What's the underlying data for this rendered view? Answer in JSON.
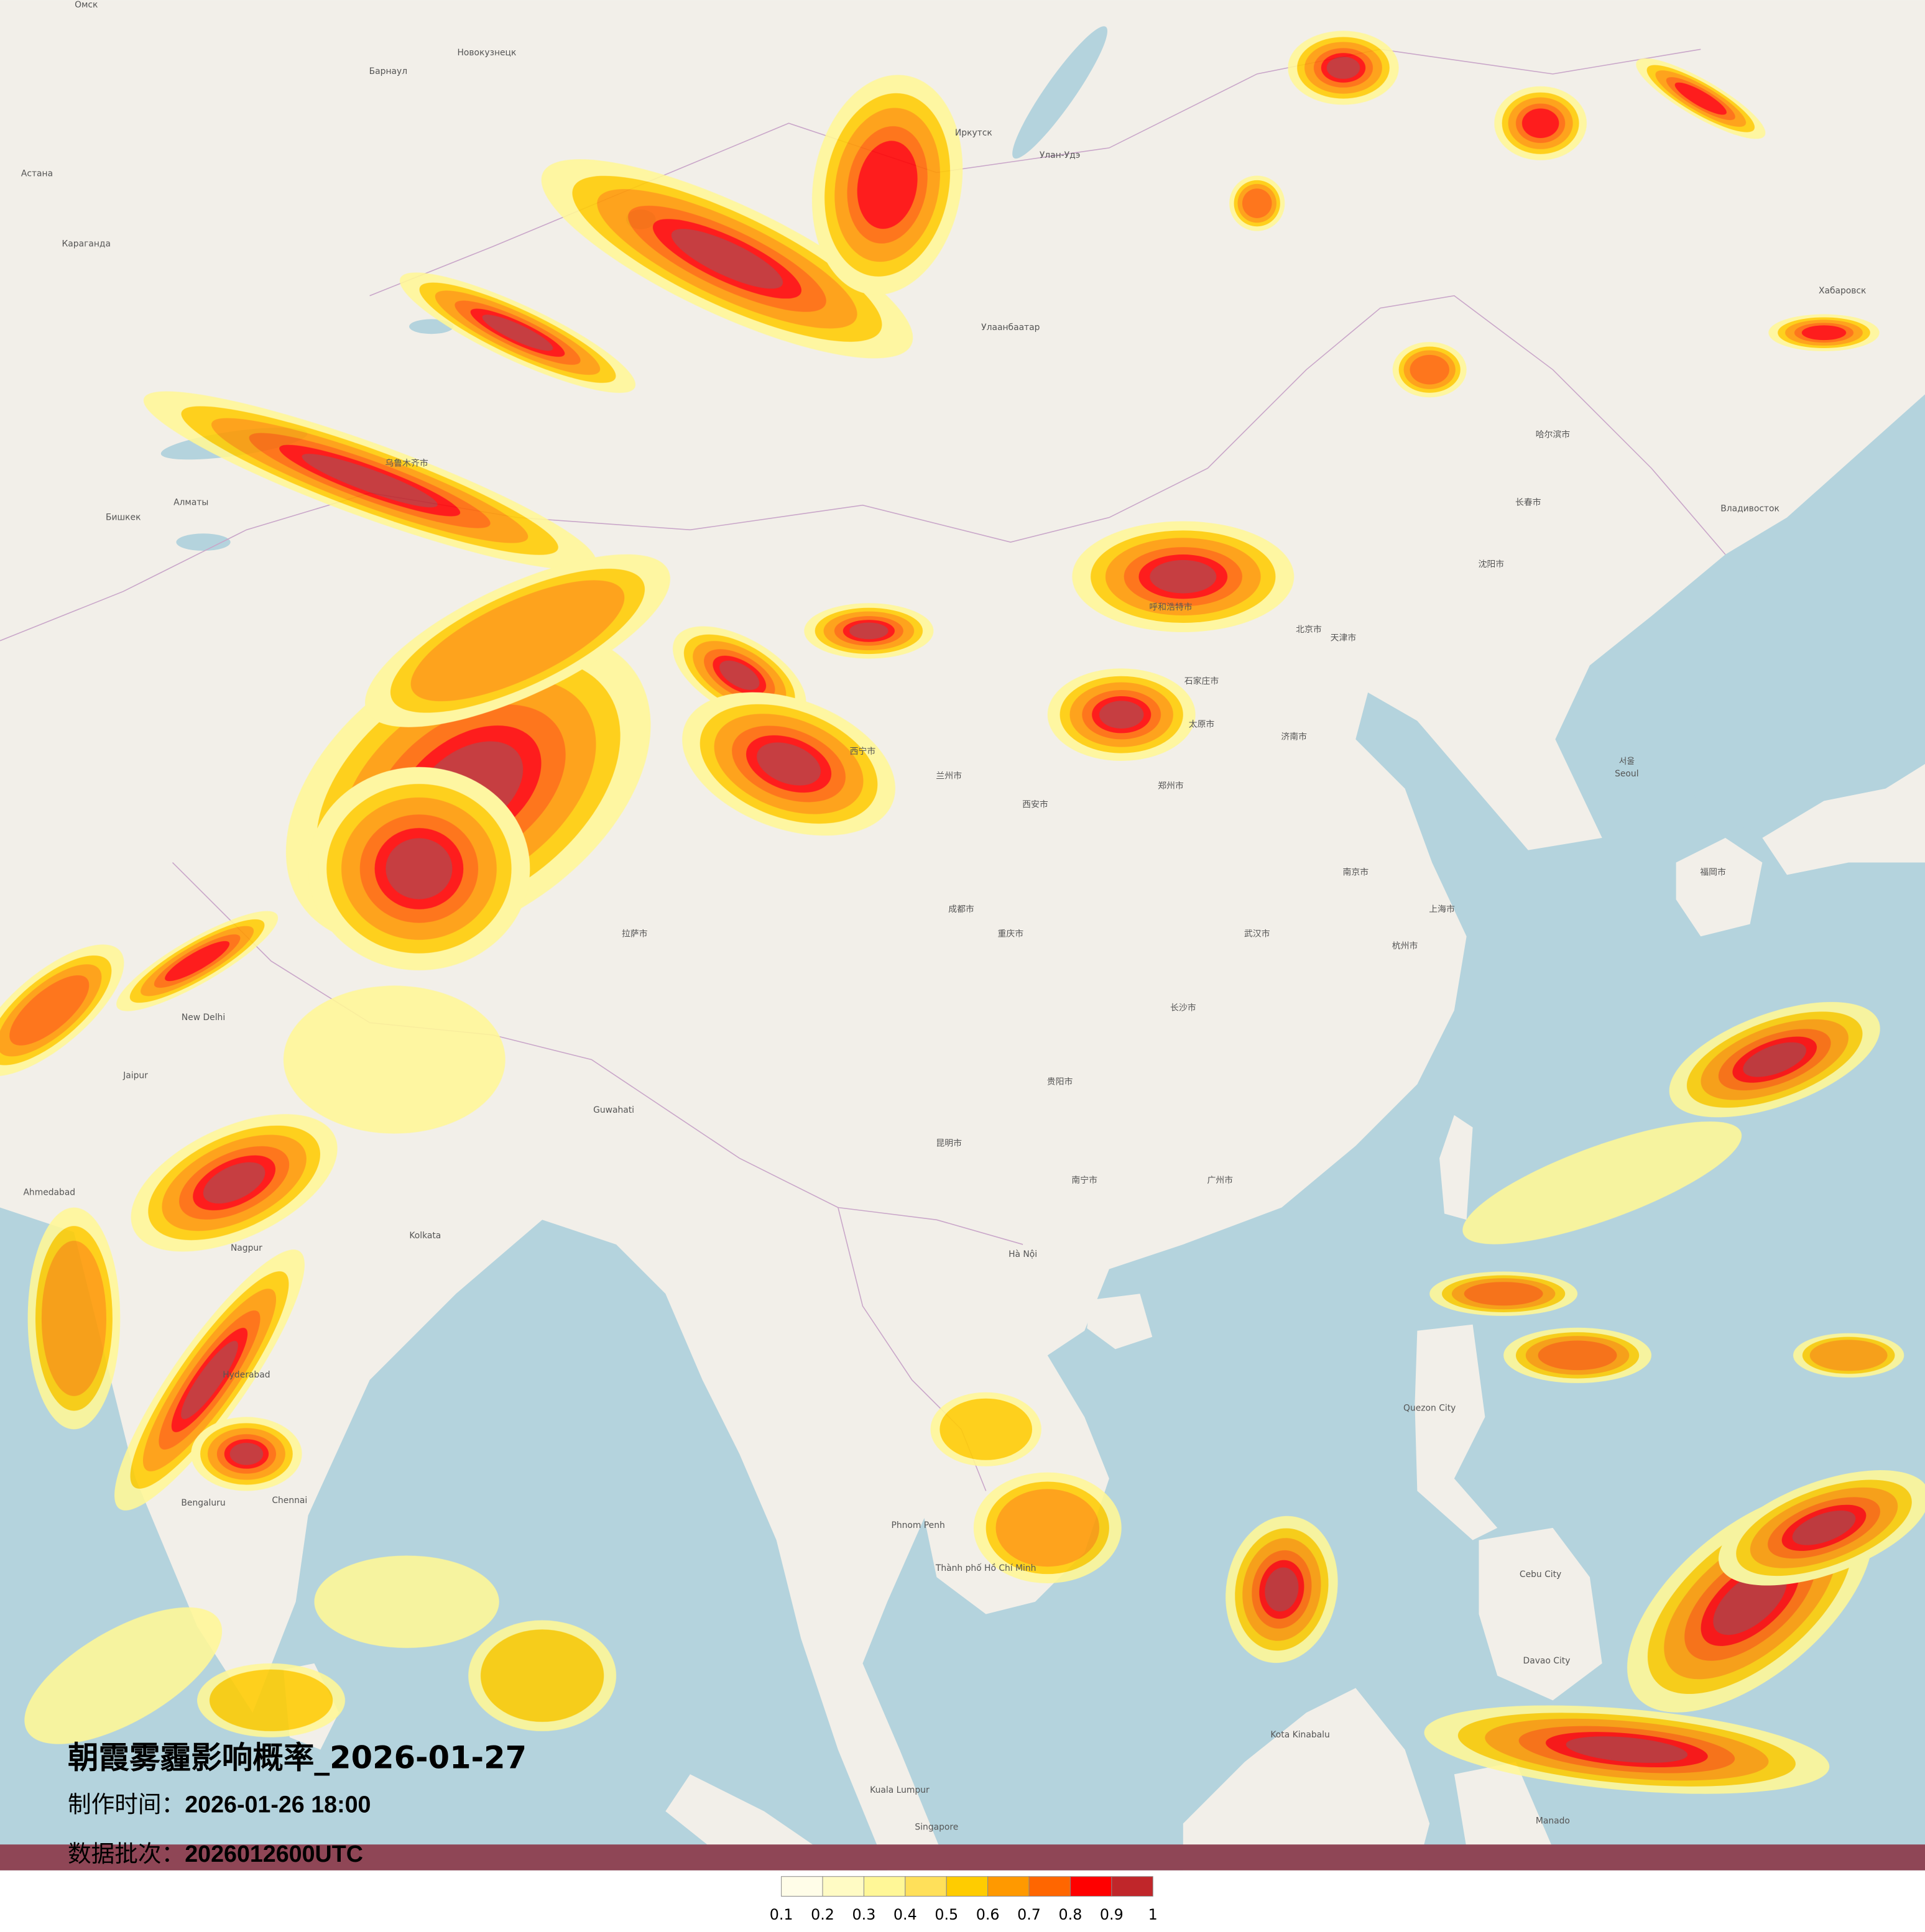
{
  "title": "朝霞雾霾影响概率_2026-01-27",
  "production_time": {
    "label": "制作时间：",
    "value": "2026-01-26 18:00"
  },
  "data_batch": {
    "label": "数据批次：",
    "value": "2026012600UTC"
  },
  "legend": {
    "colors": [
      "#fffde8",
      "#fffbc4",
      "#fff797",
      "#ffe05a",
      "#ffcc00",
      "#ff9900",
      "#ff6600",
      "#ff0000",
      "#c0262a"
    ],
    "ticks": [
      "0.1",
      "0.2",
      "0.3",
      "0.4",
      "0.5",
      "0.6",
      "0.7",
      "0.8",
      "0.9",
      "1"
    ]
  },
  "map_colors": {
    "land": "#f2efe9",
    "water": "#b4d3dd",
    "border": "#c9a6c9"
  },
  "map_labels": [
    "Омск",
    "Новокузнецк",
    "Барнаул",
    "Астана",
    "Караганда",
    "Иркутск",
    "Улан-Удэ",
    "Улаанбаатар",
    "Алматы",
    "Бишкек",
    "Хабаровск",
    "Владивосток",
    "哈尔滨市",
    "长春市",
    "沈阳市",
    "北京市",
    "天津市",
    "石家庄市",
    "太原市",
    "呼和浩特市",
    "西安市",
    "郑州市",
    "济南市",
    "南京市",
    "上海市",
    "杭州市",
    "武汉市",
    "重庆市",
    "成都市",
    "长沙市",
    "广州市",
    "南宁市",
    "昆明市",
    "贵阳市",
    "New Delhi",
    "Kolkata",
    "Jaipur",
    "Ahmedabad",
    "Hyderabad",
    "Bengaluru",
    "Chennai",
    "Hà Nội",
    "Thành phố Hồ Chí Minh",
    "Quezon City",
    "Kota Kinabalu",
    "Kuala Lumpur",
    "Singapore",
    "서울",
    "Seoul",
    "福岡市",
    "Guwahati",
    "拉萨市",
    "西宁市",
    "兰州市",
    "乌鲁木齐市",
    "Manado",
    "Davao City",
    "Cebu City",
    "Phnom Penh",
    "Nagpur"
  ]
}
